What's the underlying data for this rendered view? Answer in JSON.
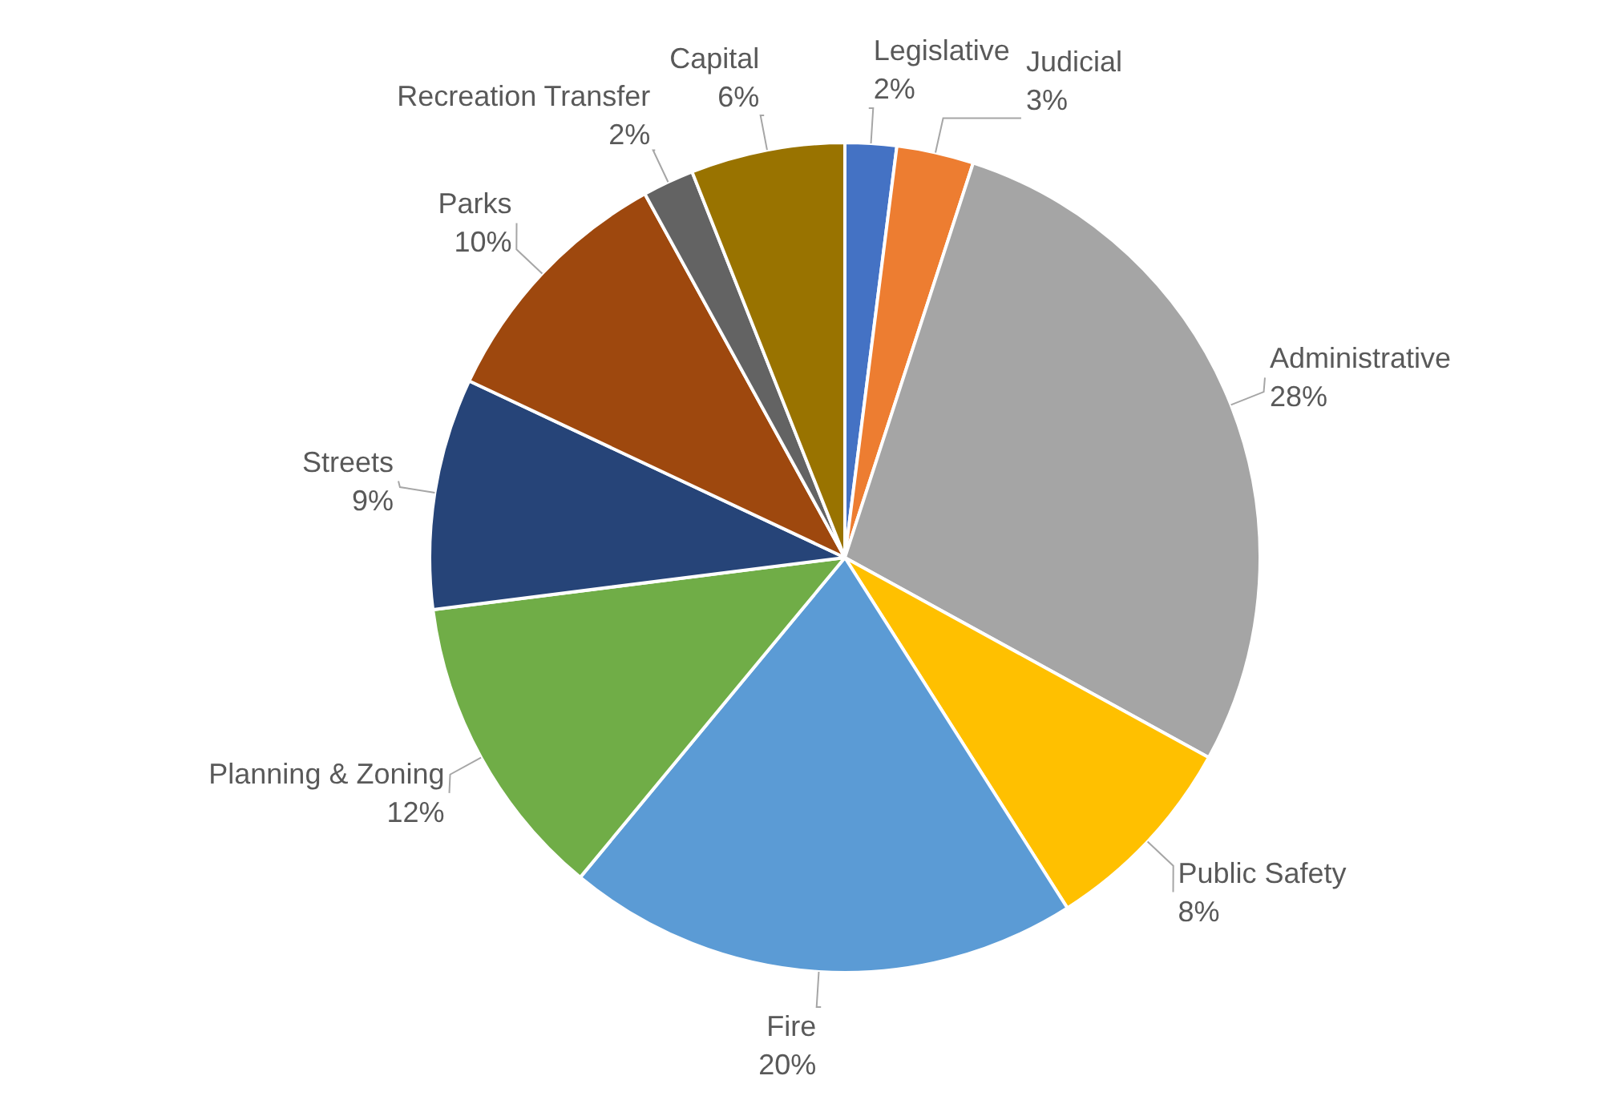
{
  "chart_data": {
    "type": "pie",
    "categories": [
      "Legislative",
      "Judicial",
      "Administrative",
      "Public Safety",
      "Fire",
      "Planning & Zoning",
      "Streets",
      "Parks",
      "Recreation Transfer",
      "Capital"
    ],
    "values": [
      2,
      3,
      28,
      8,
      20,
      12,
      9,
      10,
      2,
      6
    ],
    "value_labels": [
      "2%",
      "3%",
      "28%",
      "8%",
      "20%",
      "12%",
      "9%",
      "10%",
      "2%",
      "6%"
    ],
    "colors": [
      "#4472c4",
      "#ed7d31",
      "#a5a5a5",
      "#ffc000",
      "#5b9bd5",
      "#70ad47",
      "#264478",
      "#9e480e",
      "#636363",
      "#997300"
    ],
    "legend": false
  }
}
